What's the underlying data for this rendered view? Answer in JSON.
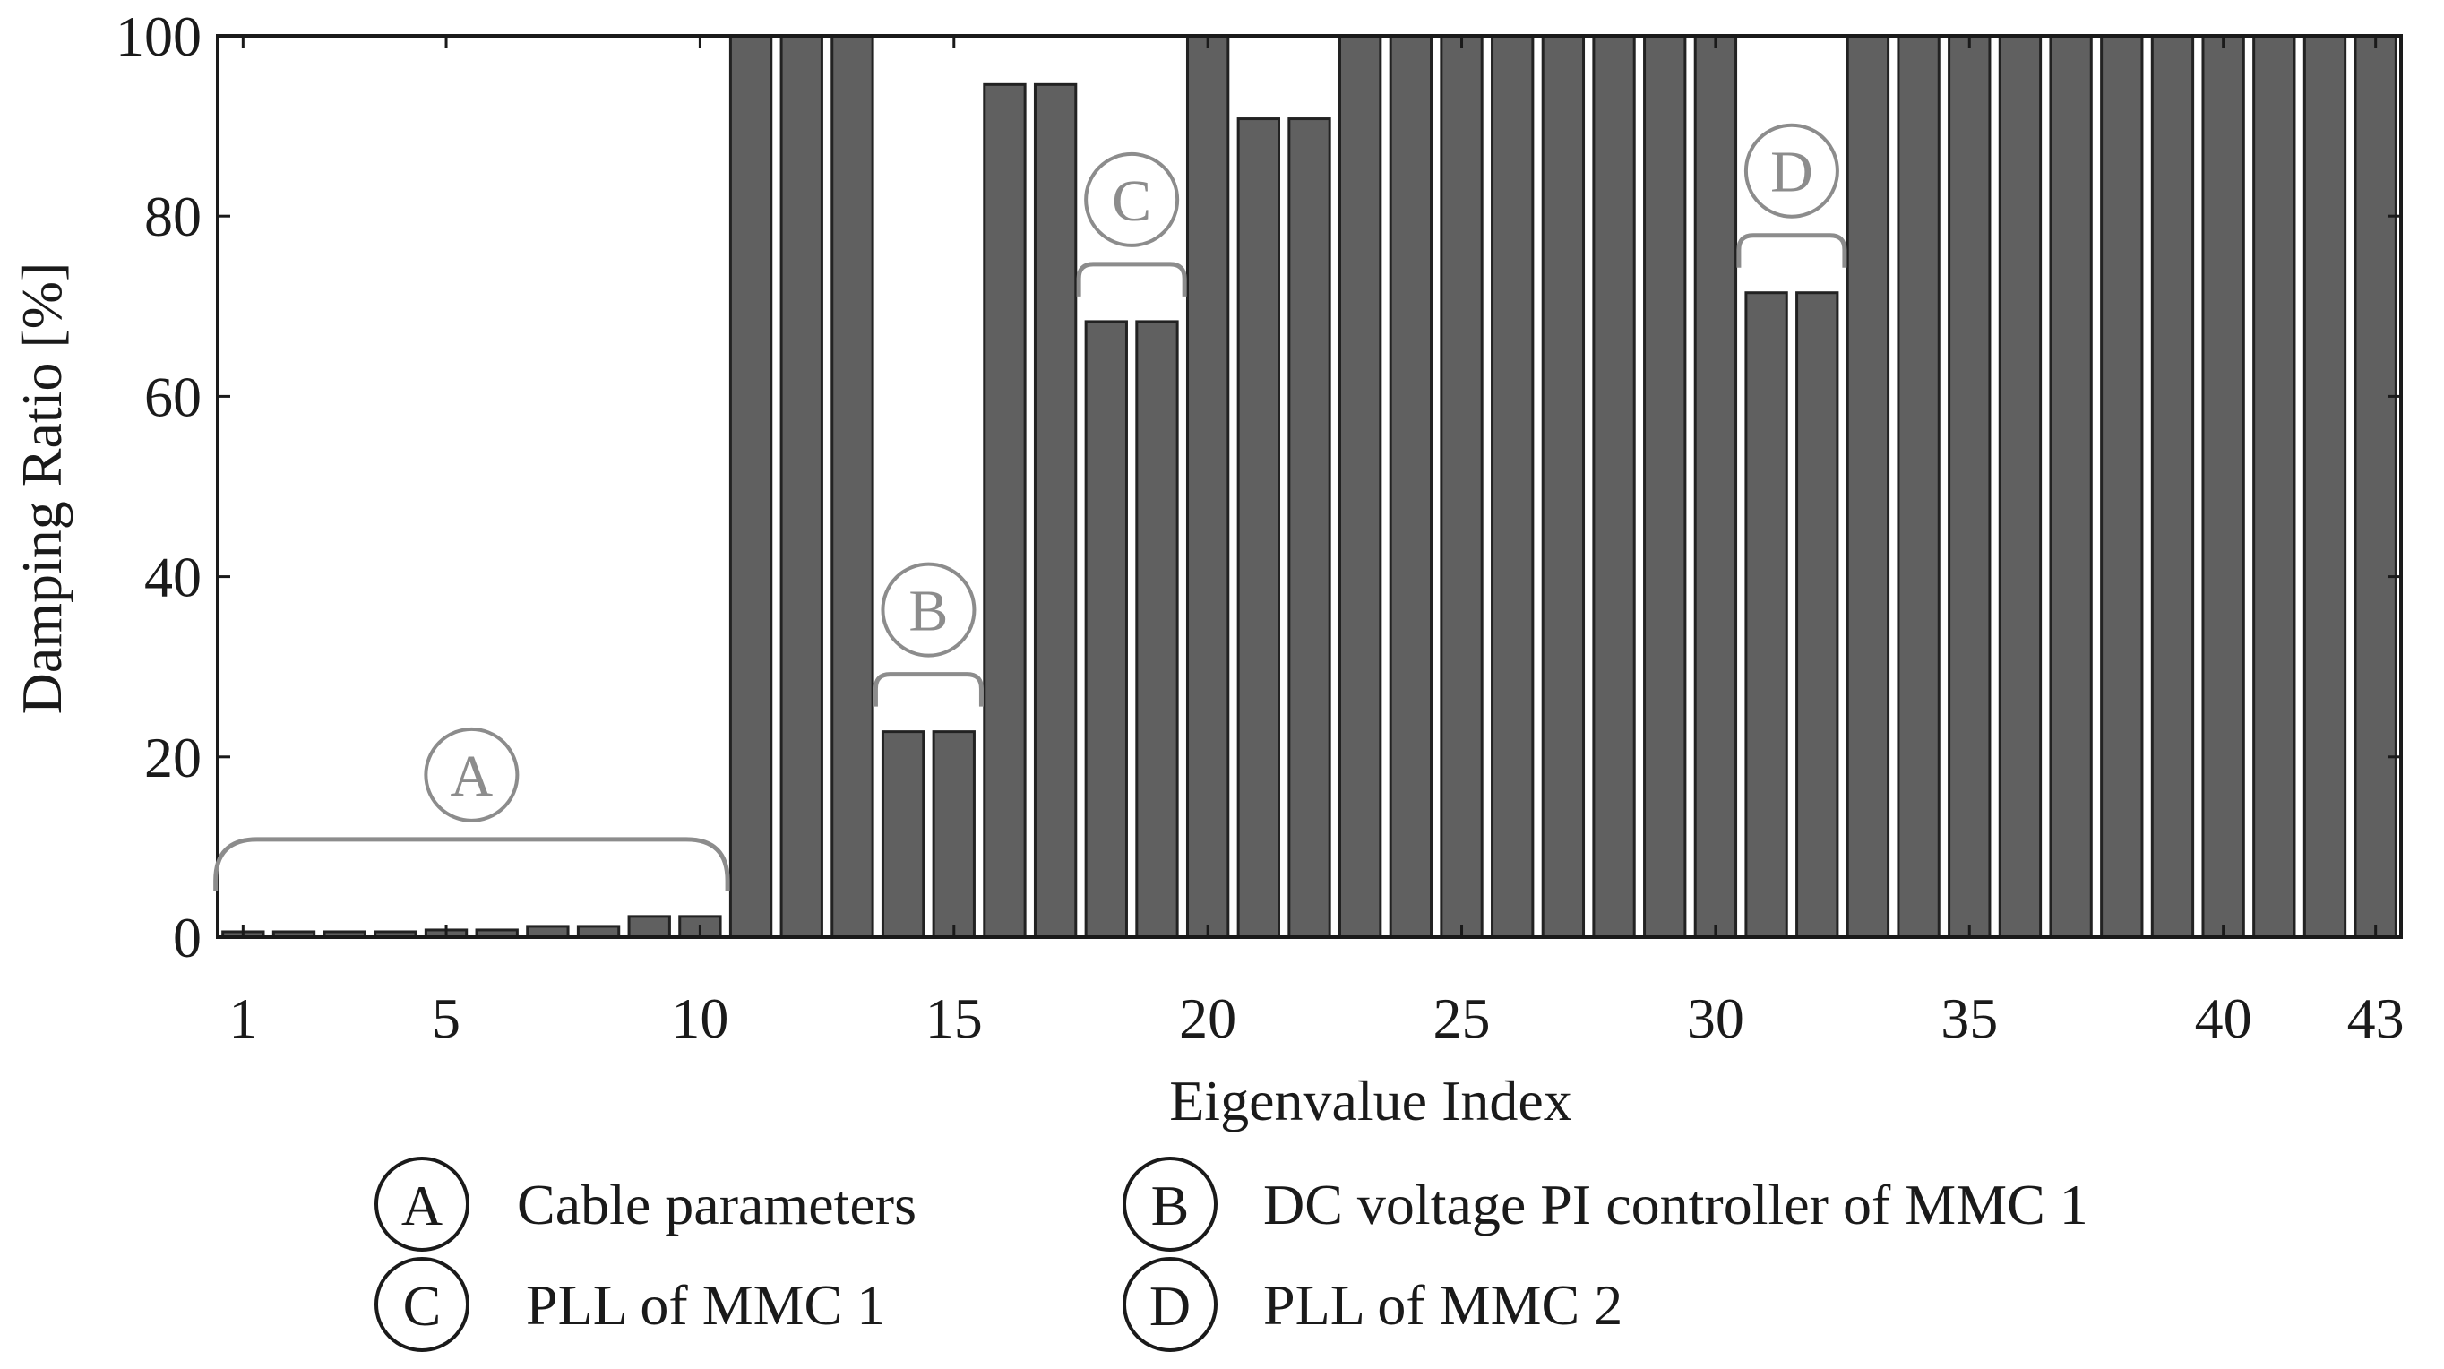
{
  "chart_data": {
    "type": "bar",
    "title": "",
    "xlabel": "Eigenvalue Index",
    "ylabel": "Damping Ratio [%]",
    "ylim": [
      0,
      100
    ],
    "xlim": [
      0.5,
      43.5
    ],
    "yticks": [
      0,
      20,
      40,
      60,
      80,
      100
    ],
    "xtick_values": [
      1,
      5,
      10,
      15,
      20,
      25,
      30,
      35,
      40,
      43
    ],
    "xtick_labels": [
      "1",
      "5",
      "10",
      "15",
      "20",
      "25",
      "30",
      "35",
      "40",
      "43"
    ],
    "ytick_labels": [
      "0",
      "20",
      "40",
      "60",
      "80",
      "100"
    ],
    "categories": [
      1,
      2,
      3,
      4,
      5,
      6,
      7,
      8,
      9,
      10,
      11,
      12,
      13,
      14,
      15,
      16,
      17,
      18,
      19,
      20,
      21,
      22,
      23,
      24,
      25,
      26,
      27,
      28,
      29,
      30,
      31,
      32,
      33,
      34,
      35,
      36,
      37,
      38,
      39,
      40,
      41,
      42,
      43
    ],
    "values": [
      0.6,
      0.6,
      0.6,
      0.6,
      0.8,
      0.8,
      1.2,
      1.2,
      2.3,
      2.3,
      100,
      100,
      100,
      22.8,
      22.8,
      94.6,
      94.6,
      68.3,
      68.3,
      100,
      90.8,
      90.8,
      100,
      100,
      100,
      100,
      100,
      100,
      100,
      100,
      71.5,
      71.5,
      100,
      100,
      100,
      100,
      100,
      100,
      100,
      100,
      100,
      100,
      100
    ],
    "bar_color": "#606060",
    "annotation_color": "#8c8c8c",
    "annotations": [
      {
        "letter": "A",
        "from_index": 1,
        "to_index": 10
      },
      {
        "letter": "B",
        "from_index": 14,
        "to_index": 15
      },
      {
        "letter": "C",
        "from_index": 18,
        "to_index": 19
      },
      {
        "letter": "D",
        "from_index": 31,
        "to_index": 32
      }
    ],
    "legend": [
      {
        "letter": "A",
        "text": "Cable parameters"
      },
      {
        "letter": "B",
        "text": "DC voltage PI controller of MMC 1"
      },
      {
        "letter": "C",
        "text": "PLL of MMC 1"
      },
      {
        "letter": "D",
        "text": "PLL of MMC 2"
      }
    ]
  }
}
